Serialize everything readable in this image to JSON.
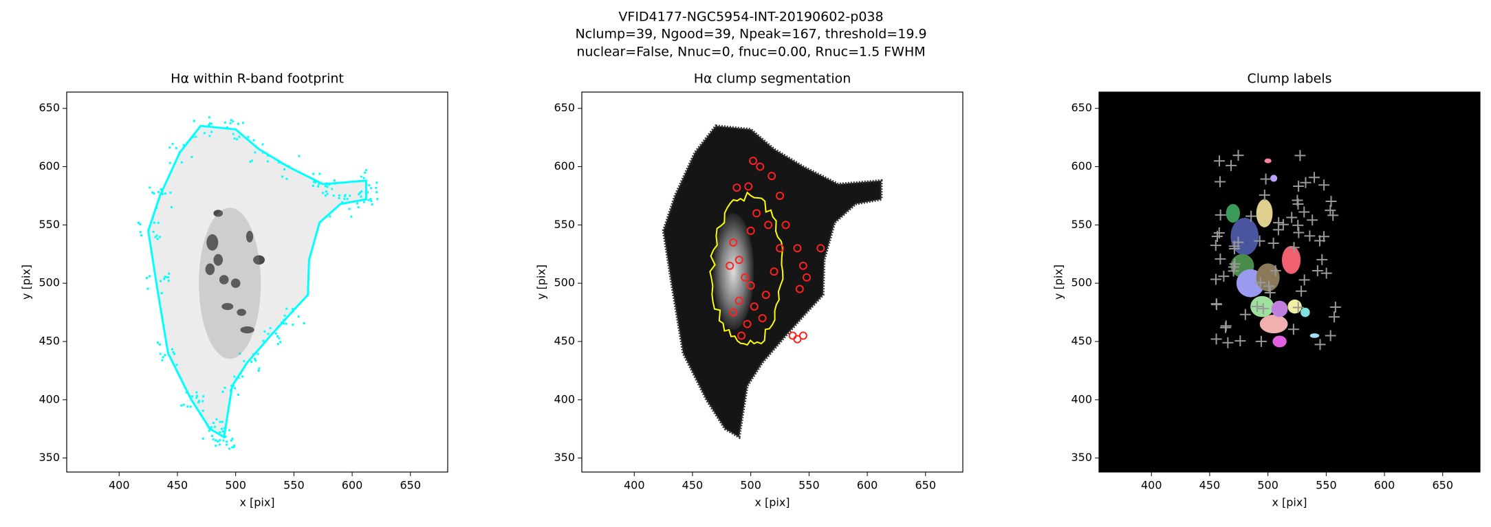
{
  "title": [
    "VFID4177-NGC5954-INT-20190602-p038",
    "Nclump=39, Ngood=39, Npeak=167, threshold=19.9",
    "nuclear=False, Nnuc=0, fnuc=0.00, Rnuc=1.5 FWHM"
  ],
  "chart_data": [
    {
      "type": "image",
      "title": "Hα within R-band footprint",
      "xlabel": "x [pix]",
      "ylabel": "y [pix]",
      "xlim": [
        355,
        682
      ],
      "ylim": [
        338,
        664
      ],
      "xticks": [
        400,
        450,
        500,
        550,
        600,
        650
      ],
      "yticks": [
        350,
        400,
        450,
        500,
        550,
        600,
        650
      ]
    },
    {
      "type": "image",
      "title": "Hα clump segmentation",
      "xlabel": "x [pix]",
      "ylabel": "y [pix]",
      "xlim": [
        355,
        682
      ],
      "ylim": [
        338,
        664
      ],
      "xticks": [
        400,
        450,
        500,
        550,
        600,
        650
      ],
      "yticks": [
        350,
        400,
        450,
        500,
        550,
        600,
        650
      ]
    },
    {
      "type": "image",
      "title": "Clump labels",
      "xlabel": "x [pix]",
      "ylabel": "y [pix]",
      "xlim": [
        355,
        682
      ],
      "ylim": [
        338,
        664
      ],
      "xticks": [
        400,
        450,
        500,
        550,
        600,
        650
      ],
      "yticks": [
        350,
        400,
        450,
        500,
        550,
        600,
        650
      ]
    }
  ]
}
